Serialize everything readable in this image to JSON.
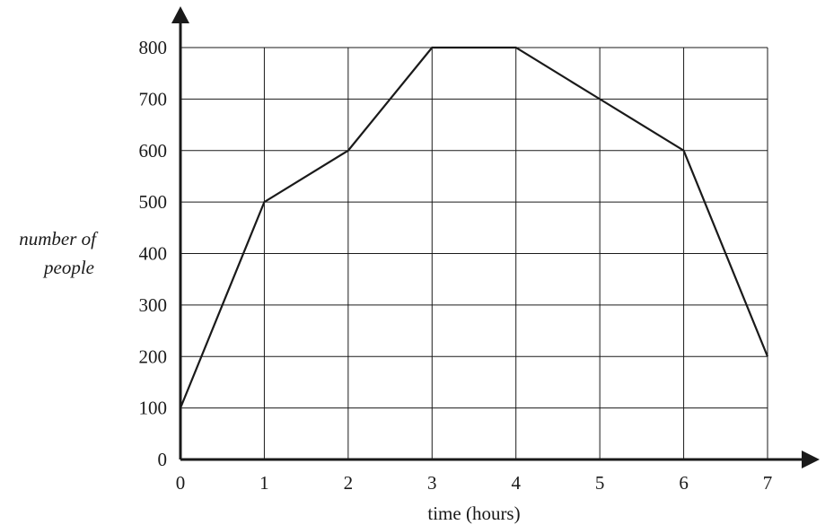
{
  "chart_data": {
    "type": "line",
    "xlabel": "time (hours)",
    "ylabel_lines": [
      "number of",
      "people"
    ],
    "x_ticks": [
      "0",
      "1",
      "2",
      "3",
      "4",
      "5",
      "6",
      "7"
    ],
    "y_ticks": [
      "0",
      "100",
      "200",
      "300",
      "400",
      "500",
      "600",
      "700",
      "800"
    ],
    "xlim": [
      0,
      7
    ],
    "ylim": [
      0,
      800
    ],
    "grid": true,
    "series": [
      {
        "x": [
          0,
          1,
          2,
          3,
          4,
          5,
          6,
          7
        ],
        "y": [
          100,
          500,
          600,
          800,
          800,
          700,
          600,
          200
        ]
      }
    ]
  }
}
